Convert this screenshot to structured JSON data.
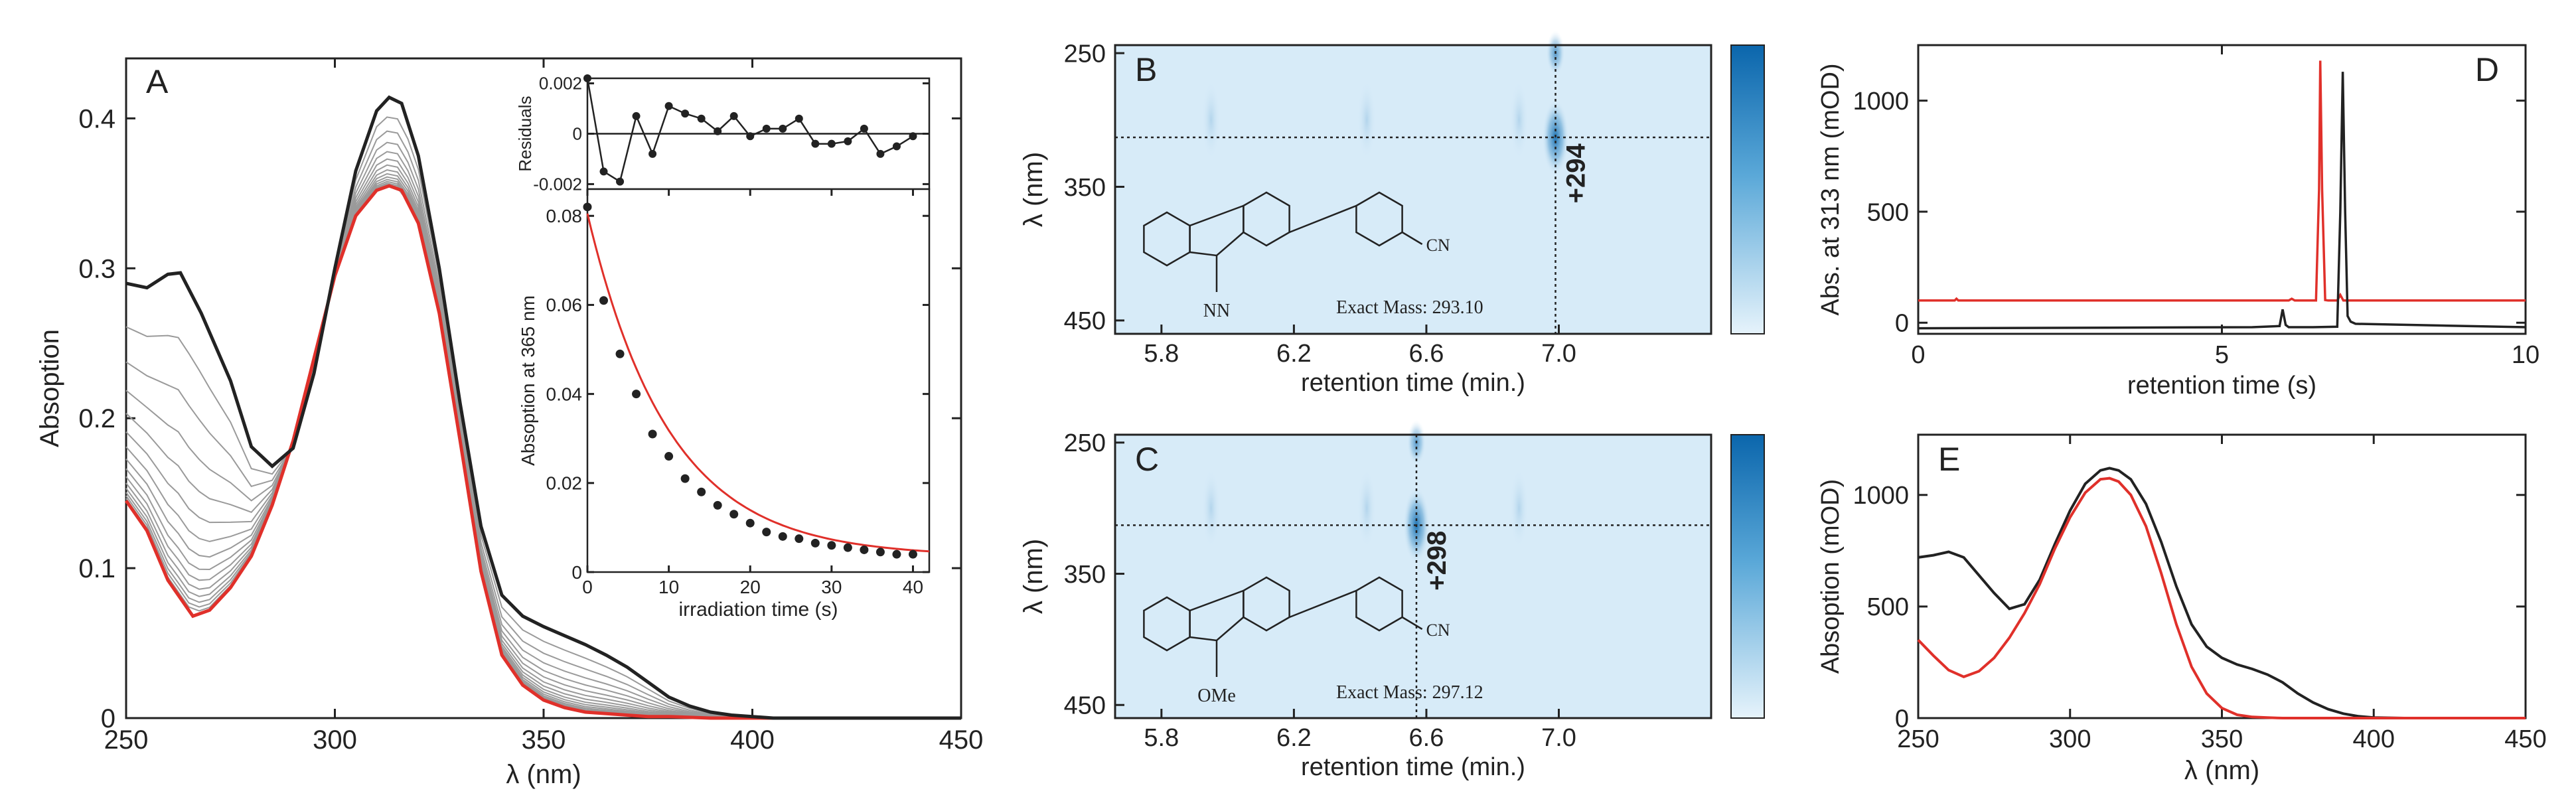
{
  "chart_data": [
    {
      "panel": "A",
      "type": "line",
      "xlabel": "λ (nm)",
      "ylabel": "Absoption",
      "xlim": [
        250,
        450
      ],
      "ylim": [
        0,
        0.44
      ],
      "xticks": [
        250,
        300,
        350,
        400,
        450
      ],
      "yticks": [
        0,
        0.1,
        0.2,
        0.3,
        0.4
      ],
      "ytick_labels": [
        "0",
        "0.1",
        "0.2",
        "0.3",
        "0.4"
      ],
      "series": [
        {
          "role": "initial",
          "color": "#222222",
          "x": [
            250,
            255,
            260,
            263,
            268,
            275,
            280,
            285,
            290,
            295,
            300,
            305,
            310,
            313,
            316,
            320,
            325,
            330,
            335,
            340,
            345,
            350,
            355,
            360,
            365,
            370,
            375,
            380,
            385,
            390,
            395,
            400,
            405,
            410,
            420,
            450
          ],
          "y": [
            0.29,
            0.287,
            0.296,
            0.297,
            0.27,
            0.225,
            0.181,
            0.168,
            0.18,
            0.23,
            0.3,
            0.365,
            0.405,
            0.414,
            0.41,
            0.375,
            0.3,
            0.21,
            0.128,
            0.082,
            0.068,
            0.061,
            0.055,
            0.049,
            0.042,
            0.034,
            0.024,
            0.014,
            0.008,
            0.004,
            0.002,
            0.001,
            0,
            0,
            0,
            0
          ]
        },
        {
          "role": "final",
          "color": "#e0302a",
          "x": [
            250,
            255,
            260,
            266,
            270,
            275,
            280,
            285,
            290,
            295,
            300,
            305,
            310,
            313,
            316,
            320,
            325,
            330,
            335,
            340,
            345,
            350,
            355,
            360,
            365,
            370,
            375,
            380,
            390,
            400,
            410,
            450
          ],
          "y": [
            0.145,
            0.125,
            0.092,
            0.068,
            0.072,
            0.087,
            0.108,
            0.142,
            0.185,
            0.24,
            0.295,
            0.335,
            0.352,
            0.355,
            0.352,
            0.33,
            0.27,
            0.185,
            0.098,
            0.042,
            0.022,
            0.012,
            0.007,
            0.004,
            0.003,
            0.002,
            0.001,
            0.001,
            0,
            0,
            0,
            0
          ]
        }
      ],
      "intermediate_count": 14,
      "intermediate_color": "#9a9a9a",
      "label": "A",
      "inset_residuals": {
        "ylabel": "Residuals",
        "ylim": [
          -0.0022,
          0.0022
        ],
        "yticks": [
          -0.002,
          0,
          0.002
        ],
        "ytick_labels": [
          "-0.002",
          "0",
          "0.002"
        ],
        "x": [
          0,
          2,
          4,
          6,
          8,
          10,
          12,
          14,
          16,
          18,
          20,
          22,
          24,
          26,
          28,
          30,
          32,
          34,
          36,
          38,
          40
        ],
        "y": [
          0.0028,
          -0.0015,
          -0.0019,
          0.0007,
          -0.0008,
          0.0011,
          0.0008,
          0.0006,
          0.0001,
          0.0007,
          -0.0001,
          0.0002,
          0.0002,
          0.0006,
          -0.0004,
          -0.0004,
          -0.0003,
          0.0002,
          -0.0008,
          -0.0005,
          -0.0001
        ]
      },
      "inset_decay": {
        "type": "scatter",
        "xlabel": "irradiation time (s)",
        "ylabel": "Absoption at 365 nm",
        "xlim": [
          0,
          42
        ],
        "ylim": [
          0,
          0.086
        ],
        "xticks": [
          0,
          10,
          20,
          30,
          40
        ],
        "yticks": [
          0,
          0.02,
          0.04,
          0.06,
          0.08
        ],
        "ytick_labels": [
          "0",
          "0.02",
          "0.04",
          "0.06",
          "0.08"
        ],
        "x": [
          0,
          2,
          4,
          6,
          8,
          10,
          12,
          14,
          16,
          18,
          20,
          22,
          24,
          26,
          28,
          30,
          32,
          34,
          36,
          38,
          40
        ],
        "y": [
          0.082,
          0.061,
          0.049,
          0.04,
          0.031,
          0.026,
          0.021,
          0.018,
          0.015,
          0.013,
          0.011,
          0.009,
          0.008,
          0.0075,
          0.0065,
          0.006,
          0.0055,
          0.005,
          0.0045,
          0.004,
          0.004
        ],
        "fit": {
          "color": "#e0302a",
          "amplitude": 0.077,
          "rate": 0.1,
          "offset": 0.0035
        }
      }
    },
    {
      "panel": "B",
      "type": "heatmap",
      "xlabel": "retention time (min.)",
      "ylabel": "λ (nm)",
      "xlim": [
        5.66,
        7.46
      ],
      "ylim": [
        460,
        244
      ],
      "xticks": [
        5.8,
        6.2,
        6.6,
        7.0
      ],
      "xtick_labels": [
        "5.8",
        "6.2",
        "6.6",
        "7.0"
      ],
      "yticks": [
        250,
        350,
        450
      ],
      "peak_retention_time": 6.99,
      "crosshair_wavelength": 313,
      "peak_annotation": "+294",
      "structure_substituent": "NN",
      "structure_nitrile": "CN",
      "exact_mass": "Exact Mass: 293.10",
      "label": "B"
    },
    {
      "panel": "C",
      "type": "heatmap",
      "xlabel": "retention time (min.)",
      "ylabel": "λ (nm)",
      "xlim": [
        5.66,
        7.46
      ],
      "ylim": [
        460,
        244
      ],
      "xticks": [
        5.8,
        6.2,
        6.6,
        7.0
      ],
      "xtick_labels": [
        "5.8",
        "6.2",
        "6.6",
        "7.0"
      ],
      "yticks": [
        250,
        350,
        450
      ],
      "peak_retention_time": 6.57,
      "crosshair_wavelength": 313,
      "peak_annotation": "+298",
      "structure_substituent": "OMe",
      "structure_nitrile": "CN",
      "exact_mass": "Exact Mass: 297.12",
      "label": "C"
    },
    {
      "panel": "D",
      "type": "line",
      "xlabel": "retention time (s)",
      "ylabel": "Abs. at 313 nm (mOD)",
      "xlim": [
        0,
        10
      ],
      "ylim": [
        -50,
        1250
      ],
      "xticks": [
        0,
        5,
        10
      ],
      "yticks": [
        0,
        500,
        1000
      ],
      "series": [
        {
          "color": "#e0302a",
          "x": [
            0,
            0.6,
            0.63,
            0.66,
            0.7,
            5,
            6.1,
            6.15,
            6.2,
            6.4,
            6.55,
            6.6,
            6.62,
            6.65,
            6.7,
            6.75,
            6.9,
            6.95,
            7.0,
            7.05,
            7.2,
            10
          ],
          "y": [
            100,
            100,
            108,
            100,
            100,
            100,
            100,
            108,
            100,
            100,
            100,
            600,
            1180,
            600,
            102,
            100,
            100,
            125,
            100,
            100,
            100,
            100
          ]
        },
        {
          "color": "#222222",
          "x": [
            0,
            5.5,
            5.95,
            6.0,
            6.05,
            6.1,
            6.5,
            6.9,
            6.95,
            6.99,
            7.03,
            7.07,
            7.12,
            7.2,
            10
          ],
          "y": [
            -25,
            -20,
            -15,
            60,
            -10,
            -20,
            -20,
            -18,
            500,
            1130,
            500,
            30,
            5,
            -5,
            -20
          ]
        }
      ],
      "label": "D"
    },
    {
      "panel": "E",
      "type": "line",
      "xlabel": "λ (nm)",
      "ylabel": "Absoption (mOD)",
      "xlim": [
        250,
        450
      ],
      "ylim": [
        0,
        1270
      ],
      "xticks": [
        250,
        300,
        350,
        400,
        450
      ],
      "yticks": [
        0,
        500,
        1000
      ],
      "series": [
        {
          "color": "#222222",
          "x": [
            250,
            255,
            260,
            265,
            270,
            275,
            280,
            285,
            290,
            295,
            300,
            305,
            310,
            313,
            316,
            320,
            325,
            330,
            335,
            340,
            345,
            350,
            355,
            360,
            365,
            370,
            375,
            380,
            385,
            390,
            395,
            400,
            410,
            450
          ],
          "y": [
            720,
            730,
            745,
            720,
            640,
            560,
            490,
            510,
            620,
            780,
            930,
            1050,
            1110,
            1120,
            1110,
            1070,
            960,
            790,
            590,
            420,
            320,
            270,
            240,
            220,
            195,
            160,
            110,
            70,
            40,
            20,
            8,
            2,
            0,
            0
          ]
        },
        {
          "color": "#e0302a",
          "x": [
            250,
            255,
            260,
            265,
            270,
            275,
            280,
            285,
            290,
            295,
            300,
            305,
            310,
            313,
            316,
            320,
            325,
            330,
            335,
            340,
            345,
            350,
            355,
            360,
            365,
            370,
            380,
            450
          ],
          "y": [
            350,
            280,
            215,
            185,
            210,
            270,
            360,
            470,
            600,
            760,
            900,
            1010,
            1070,
            1075,
            1060,
            1000,
            860,
            650,
            420,
            230,
            110,
            45,
            15,
            5,
            2,
            0,
            0,
            0
          ]
        }
      ],
      "label": "E"
    }
  ]
}
